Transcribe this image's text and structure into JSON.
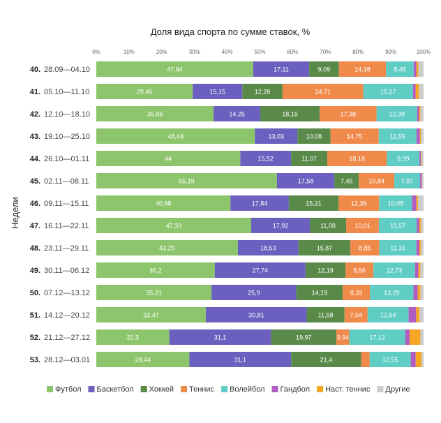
{
  "chart_data": {
    "type": "bar",
    "orientation": "horizontal",
    "stacked": true,
    "title": "Доля вида спорта по сумме ставок, %",
    "ylabel": "Недели",
    "xlabel": "",
    "xlim": [
      0,
      100
    ],
    "x_ticks": [
      "0%",
      "10%",
      "20%",
      "30%",
      "40%",
      "50%",
      "60%",
      "70%",
      "80%",
      "90%",
      "100%"
    ],
    "legend_position": "bottom",
    "categories": [
      {
        "num": "40.",
        "range": "28.09—04.10"
      },
      {
        "num": "41.",
        "range": "05.10—11.10"
      },
      {
        "num": "42.",
        "range": "12.10—18.10"
      },
      {
        "num": "43.",
        "range": "19.10—25.10"
      },
      {
        "num": "44.",
        "range": "26.10—01.11"
      },
      {
        "num": "45.",
        "range": "02.11—08.11"
      },
      {
        "num": "46.",
        "range": "09.11—15.11"
      },
      {
        "num": "47.",
        "range": "16.11—22.11"
      },
      {
        "num": "48.",
        "range": "23.11—29.11"
      },
      {
        "num": "49.",
        "range": "30.11—06.12"
      },
      {
        "num": "50.",
        "range": "07.12—13.12"
      },
      {
        "num": "51.",
        "range": "14.12—20.12"
      },
      {
        "num": "52.",
        "range": "21.12—27.12"
      },
      {
        "num": "53.",
        "range": "28.12—03.01"
      }
    ],
    "series": [
      {
        "name": "Футбол",
        "color": "#8cc56b",
        "values": [
          47.94,
          29.46,
          35.86,
          48.44,
          44,
          55.19,
          40.98,
          47.33,
          43.25,
          36.2,
          35.21,
          33.47,
          22.3,
          28.44
        ],
        "labels": [
          "47,94",
          "29,46",
          "35,86",
          "48,44",
          "44",
          "55,19",
          "40,98",
          "47,33",
          "43,25",
          "36,2",
          "35,21",
          "33,47",
          "22,3",
          "28,44"
        ]
      },
      {
        "name": "Баскетбол",
        "color": "#6b5fbf",
        "values": [
          17.11,
          15.15,
          14.25,
          13.03,
          15.52,
          17.58,
          17.84,
          17.92,
          18.53,
          27.74,
          25.9,
          30.81,
          31.1,
          31.1
        ],
        "labels": [
          "17,11",
          "15,15",
          "14,25",
          "13,03",
          "15,52",
          "17,58",
          "17,84",
          "17,92",
          "18,53",
          "27,74",
          "25,9",
          "30,81",
          "31,1",
          "31,1"
        ]
      },
      {
        "name": "Хоккей",
        "color": "#5a8a4a",
        "values": [
          9.09,
          12.28,
          18.15,
          10.08,
          11.07,
          7.45,
          15.21,
          11.08,
          15.87,
          12.19,
          14.19,
          11.58,
          19.97,
          21.4
        ],
        "labels": [
          "9,09",
          "12,28",
          "18,15",
          "10,08",
          "11,07",
          "7,45",
          "15,21",
          "11,08",
          "15,87",
          "12,19",
          "14,19",
          "11,58",
          "19,97",
          "21,4"
        ]
      },
      {
        "name": "Теннис",
        "color": "#f08a4b",
        "values": [
          14.38,
          24.71,
          17.38,
          14.75,
          18.18,
          10.84,
          12.39,
          10.01,
          8.85,
          8.56,
          8.33,
          7.04,
          3.94,
          2.6
        ],
        "labels": [
          "14,38",
          "24,71",
          "17,38",
          "14,75",
          "18,18",
          "10,84",
          "12,39",
          "10,01",
          "8,85",
          "8,56",
          "8,33",
          "7,04",
          "3,94",
          ""
        ]
      },
      {
        "name": "Волейбол",
        "color": "#5fcdc4",
        "values": [
          8.48,
          15.17,
          12.39,
          11.55,
          9.99,
          7.87,
          10.08,
          11.57,
          11.31,
          12.73,
          13.29,
          12.54,
          17.12,
          12.55
        ],
        "labels": [
          "8,48",
          "15,17",
          "12,39",
          "11,55",
          "9,99",
          "7,87",
          "10,08",
          "11,57",
          "11,31",
          "12,73",
          "13,29",
          "12,54",
          "17,12",
          "12,55"
        ]
      },
      {
        "name": "Гандбол",
        "color": "#b05cc2",
        "values": [
          0.8,
          0.8,
          0.6,
          1.0,
          0.4,
          0.5,
          1.3,
          0.8,
          0.9,
          1.0,
          1.3,
          2.3,
          1.3,
          1.5
        ],
        "labels": [
          "",
          "",
          "",
          "",
          "",
          "",
          "",
          "",
          "",
          "",
          "",
          "",
          "",
          ""
        ]
      },
      {
        "name": "Наст. теннис",
        "color": "#f5a623",
        "values": [
          0.6,
          1.0,
          0.4,
          0.3,
          0.2,
          0.1,
          0.5,
          0.5,
          0.5,
          0.6,
          0.8,
          1.0,
          3.3,
          1.8
        ],
        "labels": [
          "",
          "",
          "",
          "",
          "",
          "",
          "",
          "",
          "",
          "",
          "",
          "",
          "",
          ""
        ]
      },
      {
        "name": "Другие",
        "color": "#cccccc",
        "values": [
          1.6,
          1.43,
          0.97,
          0.85,
          0.64,
          0.47,
          1.7,
          0.79,
          0.79,
          0.98,
          0.98,
          1.26,
          0.97,
          0.61
        ],
        "labels": [
          "",
          "",
          "",
          "",
          "",
          "",
          "",
          "",
          "",
          "",
          "",
          "",
          "",
          ""
        ]
      }
    ]
  }
}
